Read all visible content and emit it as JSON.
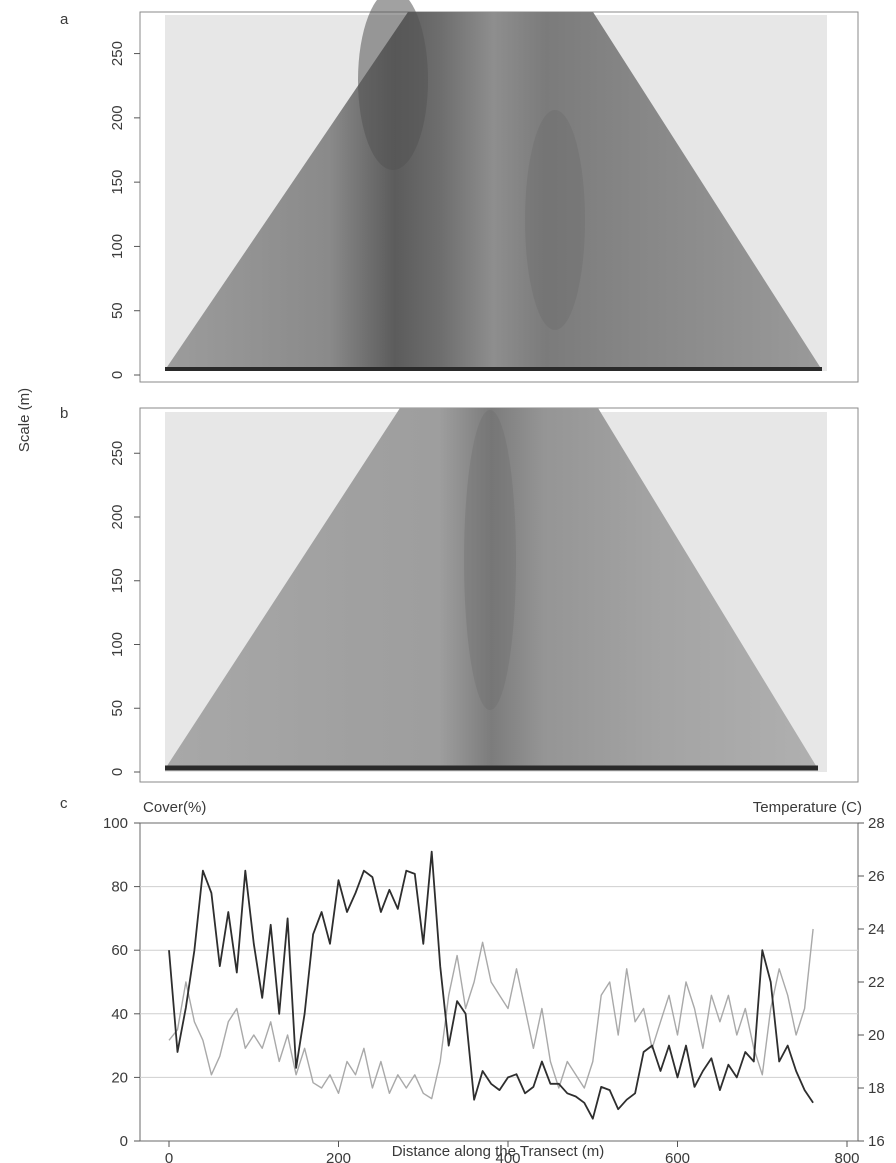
{
  "chart_data": [
    {
      "panel": "a",
      "type": "heatmap",
      "ylabel": "Scale (m)",
      "yticks": [
        "0",
        "50",
        "100",
        "150",
        "200",
        "250"
      ],
      "ylim": [
        0,
        280
      ],
      "xlim": [
        0,
        770
      ],
      "shape": "triangular wavelet scalogram (cone of influence), grayscale",
      "grid": false,
      "colors": {
        "background": "#e9e9e9",
        "low": "#b7b7b7",
        "high": "#4a4a4a"
      }
    },
    {
      "panel": "b",
      "type": "heatmap",
      "ylabel": "Scale (m)",
      "yticks": [
        "0",
        "50",
        "100",
        "150",
        "200",
        "250"
      ],
      "ylim": [
        0,
        280
      ],
      "xlim": [
        0,
        770
      ],
      "shape": "triangular wavelet scalogram (cone of influence), grayscale",
      "grid": false,
      "colors": {
        "background": "#e9e9e9",
        "low": "#b0b0b0",
        "high": "#6e6e6e"
      }
    },
    {
      "panel": "c",
      "type": "line",
      "xlabel": "Distance along the Transect (m)",
      "ylabel": "Cover(%)",
      "y2label": "Temperature (C)",
      "xticks": [
        "0",
        "200",
        "400",
        "600",
        "800"
      ],
      "yticks": [
        "0",
        "20",
        "40",
        "60",
        "80",
        "100"
      ],
      "y2ticks": [
        "16",
        "18",
        "20",
        "22",
        "24",
        "26",
        "28"
      ],
      "xlim": [
        -20,
        800
      ],
      "ylim": [
        0,
        100
      ],
      "y2lim": [
        16,
        28
      ],
      "grid": true,
      "series": [
        {
          "axis": "left",
          "color": "#2e2e2e",
          "x": [
            0,
            10,
            20,
            30,
            40,
            50,
            60,
            70,
            80,
            90,
            100,
            110,
            120,
            130,
            140,
            150,
            160,
            170,
            180,
            190,
            200,
            210,
            220,
            230,
            240,
            250,
            260,
            270,
            280,
            290,
            300,
            310,
            320,
            330,
            340,
            350,
            360,
            370,
            380,
            390,
            400,
            410,
            420,
            430,
            440,
            450,
            460,
            470,
            480,
            490,
            500,
            510,
            520,
            530,
            540,
            550,
            560,
            570,
            580,
            590,
            600,
            610,
            620,
            630,
            640,
            650,
            660,
            670,
            680,
            690,
            700,
            710,
            720,
            730,
            740,
            750,
            760
          ],
          "values": [
            60,
            28,
            42,
            60,
            85,
            78,
            55,
            72,
            53,
            85,
            62,
            45,
            68,
            40,
            70,
            23,
            40,
            65,
            72,
            62,
            82,
            72,
            78,
            85,
            83,
            72,
            79,
            73,
            85,
            84,
            62,
            91,
            55,
            30,
            44,
            40,
            13,
            22,
            18,
            16,
            20,
            21,
            15,
            17,
            25,
            18,
            18,
            15,
            14,
            12,
            7,
            17,
            16,
            10,
            13,
            15,
            28,
            30,
            22,
            30,
            20,
            30,
            17,
            22,
            26,
            16,
            24,
            20,
            28,
            25,
            60,
            50,
            25,
            30,
            22,
            16,
            12
          ]
        },
        {
          "axis": "right",
          "color": "#a9a9a9",
          "x": [
            0,
            10,
            20,
            30,
            40,
            50,
            60,
            70,
            80,
            90,
            100,
            110,
            120,
            130,
            140,
            150,
            160,
            170,
            180,
            190,
            200,
            210,
            220,
            230,
            240,
            250,
            260,
            270,
            280,
            290,
            300,
            310,
            320,
            330,
            340,
            350,
            360,
            370,
            380,
            390,
            400,
            410,
            420,
            430,
            440,
            450,
            460,
            470,
            480,
            490,
            500,
            510,
            520,
            530,
            540,
            550,
            560,
            570,
            580,
            590,
            600,
            610,
            620,
            630,
            640,
            650,
            660,
            670,
            680,
            690,
            700,
            710,
            720,
            730,
            740,
            750,
            760
          ],
          "values": [
            19.8,
            20.2,
            22.0,
            20.5,
            19.8,
            18.5,
            19.2,
            20.5,
            21.0,
            19.5,
            20.0,
            19.5,
            20.5,
            19.0,
            20.0,
            18.5,
            19.5,
            18.2,
            18.0,
            18.5,
            17.8,
            19.0,
            18.5,
            19.5,
            18.0,
            19.0,
            17.8,
            18.5,
            18.0,
            18.5,
            17.8,
            17.6,
            19.0,
            21.5,
            23.0,
            21.0,
            22.0,
            23.5,
            22.0,
            21.5,
            21.0,
            22.5,
            21.0,
            19.5,
            21.0,
            19.0,
            18.0,
            19.0,
            18.5,
            18.0,
            19.0,
            21.5,
            22.0,
            20.0,
            22.5,
            20.5,
            21.0,
            19.5,
            20.5,
            21.5,
            20.0,
            22.0,
            21.0,
            19.5,
            21.5,
            20.5,
            21.5,
            20.0,
            21.0,
            19.5,
            18.5,
            21.0,
            22.5,
            21.5,
            20.0,
            21.0,
            24.0
          ]
        }
      ]
    }
  ],
  "labels": {
    "panel_a": "a",
    "panel_b": "b",
    "panel_c": "c",
    "shared_ylabel": "Scale (m)",
    "cover_label": "Cover(%)",
    "temp_label": "Temperature (C)",
    "xlabel": "Distance along the Transect (m)"
  }
}
